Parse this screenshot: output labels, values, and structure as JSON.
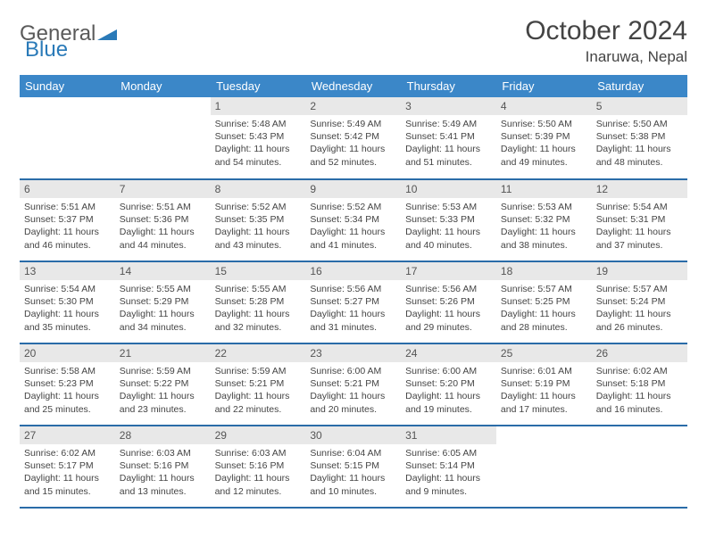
{
  "brand": {
    "part1": "General",
    "part2": "Blue"
  },
  "title": "October 2024",
  "location": "Inaruwa, Nepal",
  "style": {
    "header_bg": "#3b87c8",
    "header_fg": "#ffffff",
    "daynum_bg": "#e8e8e8",
    "row_border": "#2a6ca8",
    "body_bg": "#ffffff",
    "text_color": "#444444",
    "title_fontsize": 30,
    "location_fontsize": 17,
    "dayheader_fontsize": 13,
    "cell_fontsize": 10.5
  },
  "day_headers": [
    "Sunday",
    "Monday",
    "Tuesday",
    "Wednesday",
    "Thursday",
    "Friday",
    "Saturday"
  ],
  "weeks": [
    [
      null,
      null,
      {
        "n": "1",
        "sr": "5:48 AM",
        "ss": "5:43 PM",
        "dl": "11 hours and 54 minutes."
      },
      {
        "n": "2",
        "sr": "5:49 AM",
        "ss": "5:42 PM",
        "dl": "11 hours and 52 minutes."
      },
      {
        "n": "3",
        "sr": "5:49 AM",
        "ss": "5:41 PM",
        "dl": "11 hours and 51 minutes."
      },
      {
        "n": "4",
        "sr": "5:50 AM",
        "ss": "5:39 PM",
        "dl": "11 hours and 49 minutes."
      },
      {
        "n": "5",
        "sr": "5:50 AM",
        "ss": "5:38 PM",
        "dl": "11 hours and 48 minutes."
      }
    ],
    [
      {
        "n": "6",
        "sr": "5:51 AM",
        "ss": "5:37 PM",
        "dl": "11 hours and 46 minutes."
      },
      {
        "n": "7",
        "sr": "5:51 AM",
        "ss": "5:36 PM",
        "dl": "11 hours and 44 minutes."
      },
      {
        "n": "8",
        "sr": "5:52 AM",
        "ss": "5:35 PM",
        "dl": "11 hours and 43 minutes."
      },
      {
        "n": "9",
        "sr": "5:52 AM",
        "ss": "5:34 PM",
        "dl": "11 hours and 41 minutes."
      },
      {
        "n": "10",
        "sr": "5:53 AM",
        "ss": "5:33 PM",
        "dl": "11 hours and 40 minutes."
      },
      {
        "n": "11",
        "sr": "5:53 AM",
        "ss": "5:32 PM",
        "dl": "11 hours and 38 minutes."
      },
      {
        "n": "12",
        "sr": "5:54 AM",
        "ss": "5:31 PM",
        "dl": "11 hours and 37 minutes."
      }
    ],
    [
      {
        "n": "13",
        "sr": "5:54 AM",
        "ss": "5:30 PM",
        "dl": "11 hours and 35 minutes."
      },
      {
        "n": "14",
        "sr": "5:55 AM",
        "ss": "5:29 PM",
        "dl": "11 hours and 34 minutes."
      },
      {
        "n": "15",
        "sr": "5:55 AM",
        "ss": "5:28 PM",
        "dl": "11 hours and 32 minutes."
      },
      {
        "n": "16",
        "sr": "5:56 AM",
        "ss": "5:27 PM",
        "dl": "11 hours and 31 minutes."
      },
      {
        "n": "17",
        "sr": "5:56 AM",
        "ss": "5:26 PM",
        "dl": "11 hours and 29 minutes."
      },
      {
        "n": "18",
        "sr": "5:57 AM",
        "ss": "5:25 PM",
        "dl": "11 hours and 28 minutes."
      },
      {
        "n": "19",
        "sr": "5:57 AM",
        "ss": "5:24 PM",
        "dl": "11 hours and 26 minutes."
      }
    ],
    [
      {
        "n": "20",
        "sr": "5:58 AM",
        "ss": "5:23 PM",
        "dl": "11 hours and 25 minutes."
      },
      {
        "n": "21",
        "sr": "5:59 AM",
        "ss": "5:22 PM",
        "dl": "11 hours and 23 minutes."
      },
      {
        "n": "22",
        "sr": "5:59 AM",
        "ss": "5:21 PM",
        "dl": "11 hours and 22 minutes."
      },
      {
        "n": "23",
        "sr": "6:00 AM",
        "ss": "5:21 PM",
        "dl": "11 hours and 20 minutes."
      },
      {
        "n": "24",
        "sr": "6:00 AM",
        "ss": "5:20 PM",
        "dl": "11 hours and 19 minutes."
      },
      {
        "n": "25",
        "sr": "6:01 AM",
        "ss": "5:19 PM",
        "dl": "11 hours and 17 minutes."
      },
      {
        "n": "26",
        "sr": "6:02 AM",
        "ss": "5:18 PM",
        "dl": "11 hours and 16 minutes."
      }
    ],
    [
      {
        "n": "27",
        "sr": "6:02 AM",
        "ss": "5:17 PM",
        "dl": "11 hours and 15 minutes."
      },
      {
        "n": "28",
        "sr": "6:03 AM",
        "ss": "5:16 PM",
        "dl": "11 hours and 13 minutes."
      },
      {
        "n": "29",
        "sr": "6:03 AM",
        "ss": "5:16 PM",
        "dl": "11 hours and 12 minutes."
      },
      {
        "n": "30",
        "sr": "6:04 AM",
        "ss": "5:15 PM",
        "dl": "11 hours and 10 minutes."
      },
      {
        "n": "31",
        "sr": "6:05 AM",
        "ss": "5:14 PM",
        "dl": "11 hours and 9 minutes."
      },
      null,
      null
    ]
  ],
  "labels": {
    "sunrise": "Sunrise:",
    "sunset": "Sunset:",
    "daylight": "Daylight:"
  }
}
